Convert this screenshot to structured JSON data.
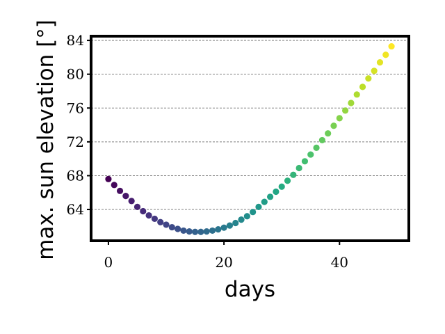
{
  "chart_data": {
    "type": "scatter",
    "title": "",
    "xlabel": "days",
    "ylabel": "max. sun elevation [°]",
    "xlim": [
      -3,
      52
    ],
    "ylim": [
      60.3,
      84.5
    ],
    "x_ticks": [
      0,
      20,
      40
    ],
    "x_tick_labels": [
      "0",
      "20",
      "40"
    ],
    "y_ticks": [
      64,
      68,
      72,
      76,
      80,
      84
    ],
    "y_tick_labels": [
      "64",
      "68",
      "72",
      "76",
      "80",
      "84"
    ],
    "grid": "horizontal dashed",
    "legend": "none",
    "colormap": "viridis",
    "series": [
      {
        "x": [
          0,
          1,
          2,
          3,
          4,
          5,
          6,
          7,
          8,
          9,
          10,
          11,
          12,
          13,
          14,
          15,
          16,
          17,
          18,
          19,
          20,
          21,
          22,
          23,
          24,
          25,
          26,
          27,
          28,
          29,
          30,
          31,
          32,
          33,
          34,
          35,
          36,
          37,
          38,
          39,
          40,
          41,
          42,
          43,
          44,
          45,
          46,
          47,
          48,
          49
        ],
        "y": [
          67.6,
          66.9,
          66.2,
          65.6,
          65.0,
          64.3,
          63.8,
          63.3,
          62.9,
          62.5,
          62.2,
          61.9,
          61.7,
          61.5,
          61.4,
          61.35,
          61.35,
          61.4,
          61.5,
          61.65,
          61.85,
          62.1,
          62.4,
          62.8,
          63.2,
          63.7,
          64.3,
          64.9,
          65.5,
          66.1,
          66.7,
          67.4,
          68.1,
          68.9,
          69.7,
          70.5,
          71.3,
          72.2,
          73.0,
          73.9,
          74.8,
          75.7,
          76.6,
          77.6,
          78.5,
          79.5,
          80.4,
          81.4,
          82.3,
          83.3
        ]
      }
    ]
  }
}
